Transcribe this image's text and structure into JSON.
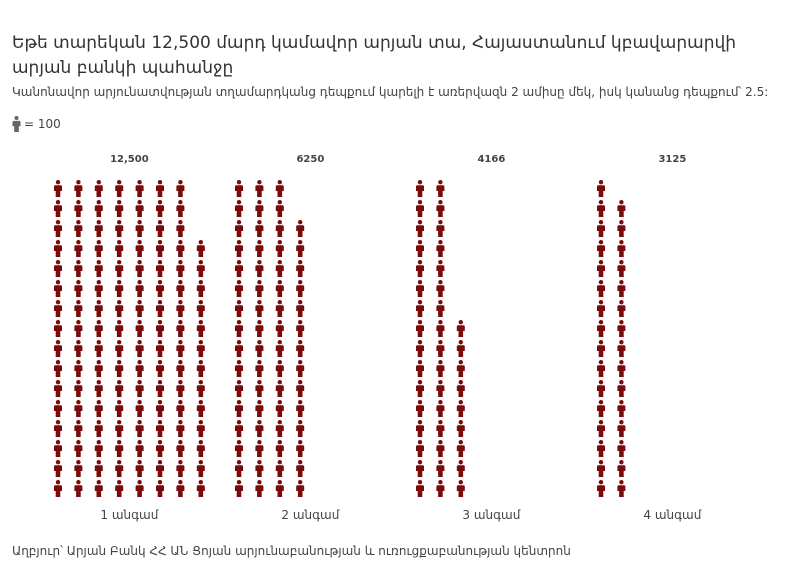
{
  "title": "Եթե տարեկան 12,500 մարդ կամավոր արյան տա, Հայաստանում կբավարարվի արյան բանկի պահանջը",
  "subtitle": "Կանոնավոր արյունատվության տղամարդկանց դեպքում կարելի է առերվազն 2 ամիսը մեկ, իսկ կանանց դեպքում՝ 2.5:",
  "legend": {
    "icon": "person-icon",
    "label": "= 100"
  },
  "source": "Աղբյուր՝ Արյան Բանկ ՀՀ ԱՆ Ցոյան արյունաբանության և ուռուցքաբանության կենտրոն",
  "colors": {
    "icon": "#7b0a0a"
  },
  "chart_data": {
    "type": "bar",
    "unit_per_icon": 100,
    "categories": [
      "1 անգամ",
      "2 անգամ",
      "3 անգամ",
      "4 անգամ"
    ],
    "values": [
      12500,
      6250,
      4166,
      3125
    ],
    "value_labels": [
      "12,500",
      "6250",
      "4166",
      "3125"
    ],
    "title": "Եթե տարեկան 12,500 մարդ կամավոր արյան տա, Հայաստանում կբավարարվի արյան բանկի պահանջը",
    "xlabel": "",
    "ylabel": ""
  }
}
